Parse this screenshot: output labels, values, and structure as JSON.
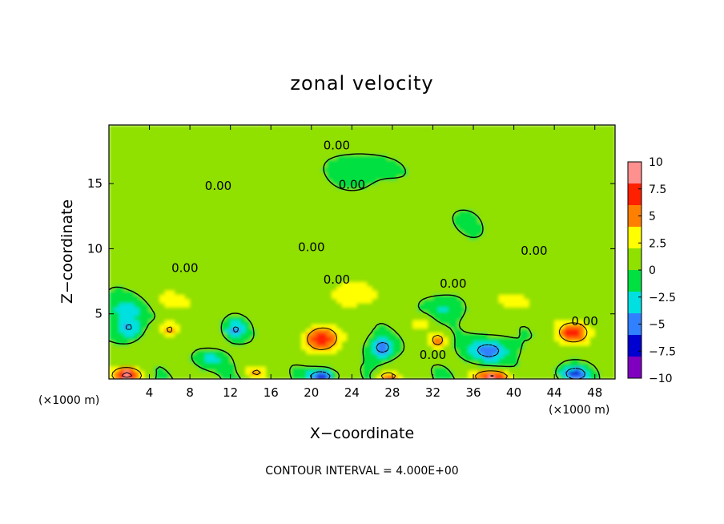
{
  "chart_data": {
    "type": "heatmap",
    "title": "zonal velocity",
    "xlabel": "X−coordinate",
    "ylabel": "Z−coordinate",
    "x_unit_left": "(×1000 m)",
    "x_unit_right": "(×1000 m)",
    "xlim": [
      0,
      50
    ],
    "ylim": [
      0,
      19.5
    ],
    "x_ticks": [
      4,
      8,
      12,
      16,
      20,
      24,
      28,
      32,
      36,
      40,
      44,
      48
    ],
    "x_tick_labels": [
      "4",
      "8",
      "12",
      "16",
      "20",
      "24",
      "28",
      "32",
      "36",
      "40",
      "44",
      "48"
    ],
    "y_ticks": [
      5,
      10,
      15
    ],
    "y_tick_labels": [
      "5",
      "10",
      "15"
    ],
    "footer": "CONTOUR INTERVAL = 4.000E+00",
    "colorbar": {
      "range": [
        -10,
        10
      ],
      "tick_values": [
        10,
        7.5,
        5,
        2.5,
        0,
        -2.5,
        -5,
        -7.5,
        -10
      ],
      "tick_labels": [
        "10",
        "7.5",
        "5",
        "2.5",
        "0",
        "−2.5",
        "−5",
        "−7.5",
        "−10"
      ],
      "colors": [
        "#ff9090",
        "#ff2000",
        "#ff8000",
        "#ffff00",
        "#90e000",
        "#00e040",
        "#00e0e0",
        "#3080ff",
        "#0000d0",
        "#8000c0"
      ]
    },
    "background_value": 0.5,
    "anomalies": [
      {
        "x": 1.8,
        "z": 0.3,
        "value": 7.5,
        "sx": 1.6,
        "sz": 0.6
      },
      {
        "x": 2,
        "z": 3.9,
        "value": -5,
        "sx": 1.2,
        "sz": 0.8
      },
      {
        "x": 6,
        "z": 3.8,
        "value": 4.5,
        "sx": 0.9,
        "sz": 0.7
      },
      {
        "x": 12.5,
        "z": 3.8,
        "value": -4.5,
        "sx": 1.0,
        "sz": 0.7
      },
      {
        "x": 21,
        "z": 3.1,
        "value": 7.5,
        "sx": 1.7,
        "sz": 1.0
      },
      {
        "x": 21,
        "z": 0.2,
        "value": -8,
        "sx": 1.3,
        "sz": 0.5
      },
      {
        "x": 27,
        "z": 2.4,
        "value": -5.5,
        "sx": 1.3,
        "sz": 0.8
      },
      {
        "x": 27.5,
        "z": 0.2,
        "value": 6,
        "sx": 1.0,
        "sz": 0.4
      },
      {
        "x": 32.5,
        "z": 3.0,
        "value": 5,
        "sx": 0.8,
        "sz": 0.6
      },
      {
        "x": 31,
        "z": 4.3,
        "value": 3,
        "sx": 0.8,
        "sz": 0.5
      },
      {
        "x": 37.5,
        "z": 2.2,
        "value": -6,
        "sx": 2.0,
        "sz": 0.9
      },
      {
        "x": 38,
        "z": 0.2,
        "value": 7.5,
        "sx": 1.8,
        "sz": 0.5
      },
      {
        "x": 46,
        "z": 3.6,
        "value": 6.5,
        "sx": 1.7,
        "sz": 0.9
      },
      {
        "x": 46,
        "z": 0.4,
        "value": -6.5,
        "sx": 1.4,
        "sz": 0.6
      },
      {
        "x": 14.5,
        "z": 0.5,
        "value": 3.5,
        "sx": 1.0,
        "sz": 0.5
      },
      {
        "x": 10,
        "z": 1.5,
        "value": -3,
        "sx": 1.5,
        "sz": 0.7
      },
      {
        "x": 24,
        "z": 6.5,
        "value": 2.5,
        "sx": 3.0,
        "sz": 1.2
      },
      {
        "x": 6,
        "z": 6.0,
        "value": 2.5,
        "sx": 3.0,
        "sz": 1.0
      },
      {
        "x": 40,
        "z": 6.0,
        "value": 2,
        "sx": 3.0,
        "sz": 1.0
      },
      {
        "x": 2,
        "z": 5.5,
        "value": -3.5,
        "sx": 2.5,
        "sz": 1.0
      },
      {
        "x": 33,
        "z": 5.5,
        "value": -2.5,
        "sx": 2.0,
        "sz": 0.8
      },
      {
        "x": 10,
        "z": 14.0,
        "value": 1.0,
        "sx": 4.0,
        "sz": 2.0
      },
      {
        "x": 35,
        "z": 12.0,
        "value": -0.5,
        "sx": 4.0,
        "sz": 2.0
      },
      {
        "x": 25,
        "z": 16.0,
        "value": -0.8,
        "sx": 5.0,
        "sz": 2.0
      }
    ],
    "contour_label": "0.00",
    "contour_labels": [
      {
        "text": "0.00",
        "x": 22.5,
        "z": 17.9
      },
      {
        "text": "0.00",
        "x": 10.8,
        "z": 14.8
      },
      {
        "text": "0.00",
        "x": 24.0,
        "z": 14.9
      },
      {
        "text": "0.00",
        "x": 20.0,
        "z": 10.1
      },
      {
        "text": "0.00",
        "x": 7.5,
        "z": 8.5
      },
      {
        "text": "0.00",
        "x": 22.5,
        "z": 7.6
      },
      {
        "text": "0.00",
        "x": 34.0,
        "z": 7.3
      },
      {
        "text": "0.00",
        "x": 42.0,
        "z": 9.8
      },
      {
        "text": "0.00",
        "x": 47.0,
        "z": 4.4
      },
      {
        "text": "0.00",
        "x": 32.0,
        "z": 1.8
      }
    ]
  },
  "colors": {
    "contour": "#000000",
    "frame": "#000000"
  }
}
